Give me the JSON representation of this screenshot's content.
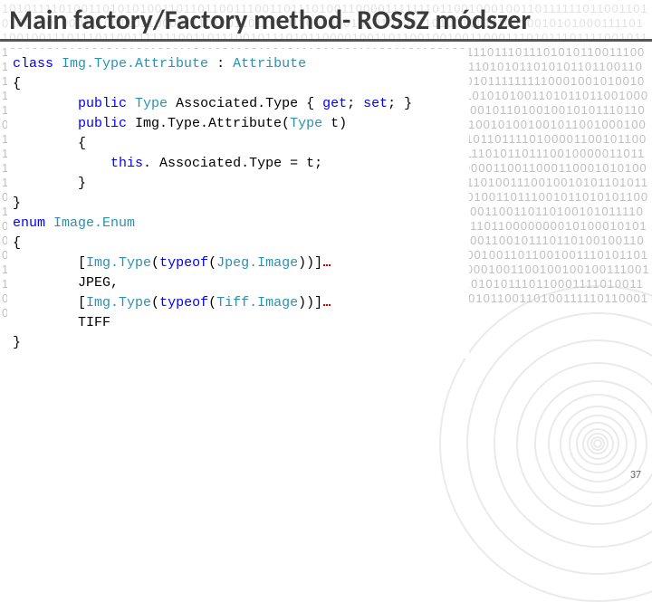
{
  "title": "Main factory/Factory method- ROSSZ módszer",
  "page_number": "37",
  "background": {
    "binary_lines": [
      "101011110100110101010011011011001110011011101001100001111111011001000100110",
      "111111011001101010010010001110011011000011101101101101011000000101010100110",
      "100111001001001010100011110110010011101110110011111110011011100101110101100",
      "001001101100100100110001110101110111100101110010101010101010101100111011001",
      "100110101110110011110011011001001110111011101010110011100100110111000011000",
      "011001001001101010100111000111100101010011001011010101101010110110011011101",
      "010110101100100110110111010100011001111001111010100010010100101111111110001",
      "001010010101110110011010011110100100110001110011011001100100100100011100110",
      "101010011010110110010001110010111001101111001111011110110111111011000111100",
      "100101100001110010110100100101011101100010011001010110110100110100110001011",
      "001010110111001010110111010100101001001011001000100110010111000110010111000",
      "100111001100110010001010011101100101100110110111101000011001011001110100001",
      "001001100110001111100101011001011011001000100110001111111010110111001000001",
      "101110001011101101100100101001001101011010100100110001011001011010100001100",
      "110001100010101001110010110110110110011010010010100110110101010110011101010",
      "011001110100111001001010110101101001101101100101111000111001110110101000011",
      "001101100001001010010100110111001011010101100111001010110110000001000101110",
      "111001001101001010010010101001100100110011011010010101111000001011101010000",
      "011010100110110100001011101010101010111101010101101100000000101000101010101",
      "011101001011010101001001011011010100011011010100101011001110001100101110110",
      "100100110010010001100101010010100011001110110110101111100011000001110101100",
      "100110110010011101011011110111011001010101010010100100100010001010101010100",
      "100100101100001001100100100100111001111110001001001100000110000101100111111",
      "000010111011111011111101111010101110110001111010011011110001010010101101100",
      "101110110101101110010000000100001000110101011001101001111101100010001100110"
    ],
    "circle_sizes": [
      350,
      290,
      230,
      180,
      140,
      110,
      85,
      65,
      48,
      35,
      24,
      16,
      10
    ],
    "circle_color": "#cccccc"
  },
  "code": {
    "colors": {
      "keyword": "#0000ff",
      "type": "#2b91af",
      "plain": "#000000",
      "guide": "#d0d0d0",
      "muted": "#888888"
    },
    "font_size": 15,
    "line_height": 22,
    "lines": [
      {
        "indent": 0,
        "tokens": [
          [
            "kw",
            "class"
          ],
          [
            "plain",
            " "
          ],
          [
            "type",
            "Img.Type.Attribute"
          ],
          [
            "plain",
            " : "
          ],
          [
            "type",
            "Attribute"
          ]
        ]
      },
      {
        "indent": 0,
        "tokens": [
          [
            "plain",
            "{"
          ]
        ]
      },
      {
        "indent": 2,
        "tokens": [
          [
            "kw",
            "public"
          ],
          [
            "plain",
            " "
          ],
          [
            "type",
            "Type"
          ],
          [
            "plain",
            " Associated.Type { "
          ],
          [
            "kw",
            "get"
          ],
          [
            "plain",
            "; "
          ],
          [
            "kw",
            "set"
          ],
          [
            "plain",
            "; }"
          ]
        ]
      },
      {
        "indent": 2,
        "tokens": [
          [
            "kw",
            "public"
          ],
          [
            "plain",
            " Img.Type.Attribute("
          ],
          [
            "type",
            "Type"
          ],
          [
            "plain",
            " t)"
          ]
        ]
      },
      {
        "indent": 2,
        "tokens": [
          [
            "plain",
            "{"
          ]
        ]
      },
      {
        "indent": 3,
        "tokens": [
          [
            "kw",
            "this"
          ],
          [
            "plain",
            ". Associated.Type = t;"
          ]
        ]
      },
      {
        "indent": 2,
        "tokens": [
          [
            "plain",
            "}"
          ]
        ]
      },
      {
        "indent": 0,
        "tokens": [
          [
            "plain",
            "}"
          ]
        ]
      },
      {
        "indent": 0,
        "tokens": []
      },
      {
        "indent": 0,
        "tokens": [
          [
            "kw",
            "enum"
          ],
          [
            "plain",
            " "
          ],
          [
            "type",
            "Image.Enum"
          ]
        ]
      },
      {
        "indent": 0,
        "tokens": [
          [
            "plain",
            "{"
          ]
        ]
      },
      {
        "indent": 2,
        "tokens": [
          [
            "plain",
            "["
          ],
          [
            "type",
            "Img.Type"
          ],
          [
            "plain",
            "("
          ],
          [
            "kw",
            "typeof"
          ],
          [
            "plain",
            "("
          ],
          [
            "type",
            "Jpeg.Image"
          ],
          [
            "plain",
            "))]"
          ]
        ],
        "squiggle": true
      },
      {
        "indent": 2,
        "tokens": [
          [
            "plain",
            "JPEG,"
          ]
        ]
      },
      {
        "indent": 2,
        "tokens": [
          [
            "plain",
            "["
          ],
          [
            "type",
            "Img.Type"
          ],
          [
            "plain",
            "("
          ],
          [
            "kw",
            "typeof"
          ],
          [
            "plain",
            "("
          ],
          [
            "type",
            "Tiff.Image"
          ],
          [
            "plain",
            "))]"
          ]
        ],
        "squiggle": true
      },
      {
        "indent": 2,
        "tokens": [
          [
            "plain",
            "TIFF"
          ]
        ]
      },
      {
        "indent": 0,
        "tokens": [
          [
            "plain",
            "}"
          ]
        ]
      }
    ]
  }
}
